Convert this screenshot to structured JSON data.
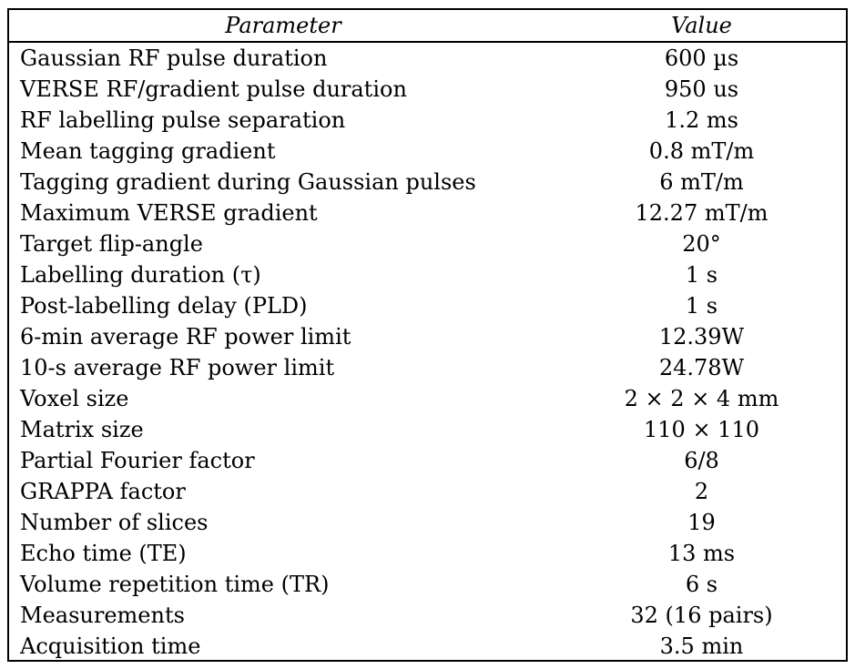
{
  "table": {
    "headers": {
      "parameter": "Parameter",
      "value": "Value"
    },
    "rows": [
      {
        "parameter": "Gaussian RF pulse duration",
        "value": "600 µs"
      },
      {
        "parameter": "VERSE RF/gradient pulse duration",
        "value": "950 us"
      },
      {
        "parameter": "RF labelling pulse separation",
        "value": "1.2 ms"
      },
      {
        "parameter": "Mean tagging gradient",
        "value": "0.8 mT/m"
      },
      {
        "parameter": "Tagging gradient during Gaussian pulses",
        "value": "6 mT/m"
      },
      {
        "parameter": "Maximum VERSE gradient",
        "value": "12.27 mT/m"
      },
      {
        "parameter": "Target flip-angle",
        "value": "20°"
      },
      {
        "parameter": "Labelling duration (τ)",
        "value": "1 s"
      },
      {
        "parameter": "Post-labelling delay (PLD)",
        "value": "1 s"
      },
      {
        "parameter": "6-min average RF power limit",
        "value": "12.39W"
      },
      {
        "parameter": "10-s average RF power limit",
        "value": "24.78W"
      },
      {
        "parameter": "Voxel size",
        "value": "2 × 2 × 4 mm"
      },
      {
        "parameter": "Matrix size",
        "value": "110 × 110"
      },
      {
        "parameter": "Partial Fourier factor",
        "value": "6/8"
      },
      {
        "parameter": "GRAPPA factor",
        "value": "2"
      },
      {
        "parameter": "Number of slices",
        "value": "19"
      },
      {
        "parameter": "Echo time (TE)",
        "value": "13 ms"
      },
      {
        "parameter": "Volume repetition time (TR)",
        "value": "6 s"
      },
      {
        "parameter": "Measurements",
        "value": "32 (16 pairs)"
      },
      {
        "parameter": "Acquisition time",
        "value": "3.5 min"
      }
    ]
  }
}
